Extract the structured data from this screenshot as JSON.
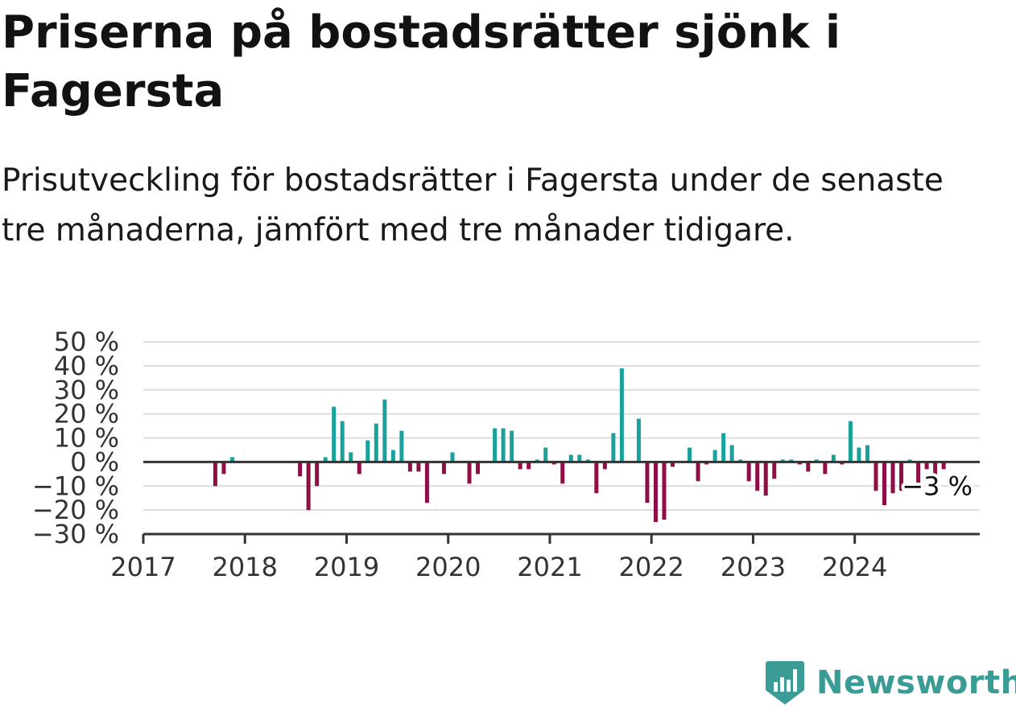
{
  "title": "Priserna på bostadsrätter sjönk i Fagersta",
  "subtitle": "Prisutveckling för bostadsrätter i Fagersta under de senaste tre månaderna, jämfört med tre månader tidigare.",
  "brand": {
    "name": "Newsworthy",
    "color": "#3b9c96"
  },
  "colors": {
    "positive": "#1aa19c",
    "negative": "#8f0e45",
    "grid": "#dddddd",
    "axis": "#333333"
  },
  "chart_data": {
    "type": "bar",
    "title": "Priserna på bostadsrätter sjönk i Fagersta",
    "subtitle": "Prisutveckling för bostadsrätter i Fagersta under de senaste tre månaderna, jämfört med tre månader tidigare.",
    "xlabel": "",
    "ylabel": "",
    "ylim": [
      -30,
      50
    ],
    "yticks": [
      50,
      40,
      30,
      20,
      10,
      0,
      -10,
      -20,
      -30
    ],
    "ytick_labels": [
      "50 %",
      "40 %",
      "30 %",
      "20 %",
      "10 %",
      "0 %",
      "−10 %",
      "−20 %",
      "−30 %"
    ],
    "xticks": [
      "2017",
      "2018",
      "2019",
      "2020",
      "2021",
      "2022",
      "2023",
      "2024"
    ],
    "grid": true,
    "end_label": "−3 %",
    "start": "2017-01",
    "values": [
      null,
      null,
      null,
      null,
      null,
      null,
      null,
      null,
      -10,
      -5,
      2,
      null,
      null,
      null,
      null,
      null,
      null,
      null,
      -6,
      -20,
      -10,
      2,
      23,
      17,
      4,
      -5,
      9,
      16,
      26,
      5,
      13,
      -4,
      -4,
      -17,
      0,
      -5,
      4,
      null,
      -9,
      -5,
      null,
      14,
      14,
      13,
      -3,
      -3,
      1,
      6,
      -1,
      -9,
      3,
      3,
      1,
      -13,
      -3,
      12,
      39,
      null,
      18,
      -17,
      -25,
      -24,
      -2,
      null,
      6,
      -8,
      -1,
      5,
      12,
      7,
      1,
      -8,
      -12,
      -14,
      -7,
      1,
      1,
      -1,
      -4,
      1,
      -5,
      3,
      -1,
      17,
      6,
      7,
      -12,
      -18,
      -13,
      -12,
      1,
      -11,
      -3,
      -6,
      -3
    ]
  }
}
